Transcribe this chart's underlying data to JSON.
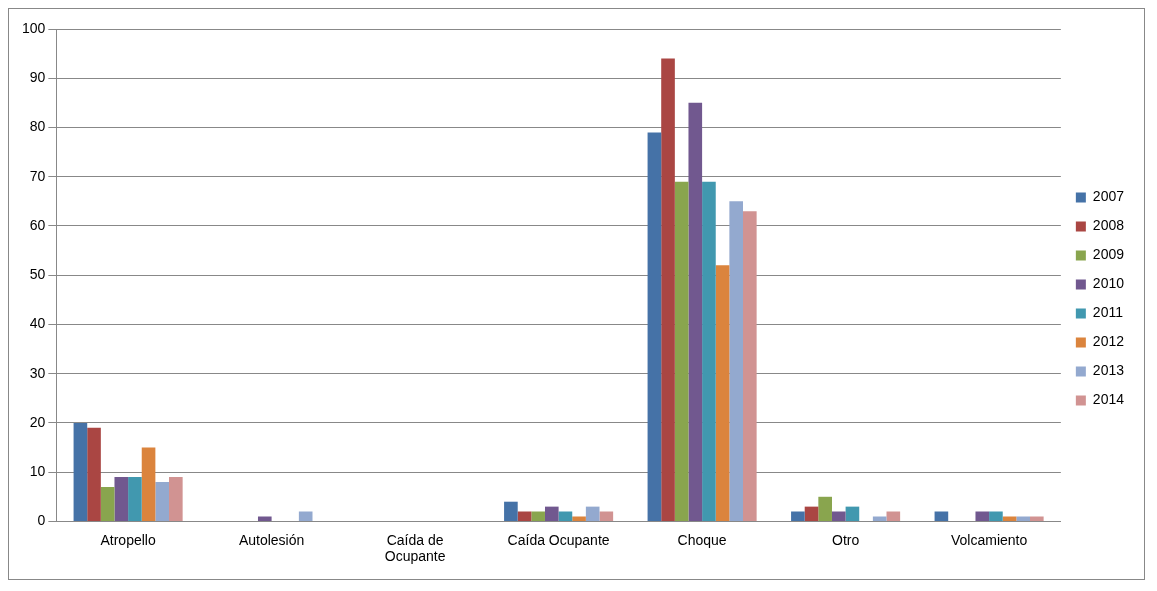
{
  "chart_data": {
    "type": "bar",
    "categories": [
      "Atropello",
      "Autolesión",
      "Caída de Ocupante",
      "Caída Ocupante",
      "Choque",
      "Otro",
      "Volcamiento"
    ],
    "series": [
      {
        "name": "2007",
        "color": "#4572a7",
        "values": [
          20,
          0,
          0,
          4,
          79,
          2,
          2
        ]
      },
      {
        "name": "2008",
        "color": "#aa4643",
        "values": [
          19,
          0,
          0,
          2,
          94,
          3,
          0
        ]
      },
      {
        "name": "2009",
        "color": "#89a54e",
        "values": [
          7,
          0,
          0,
          2,
          69,
          5,
          0
        ]
      },
      {
        "name": "2010",
        "color": "#71588f",
        "values": [
          9,
          1,
          0,
          3,
          85,
          2,
          2
        ]
      },
      {
        "name": "2011",
        "color": "#4198af",
        "values": [
          9,
          0,
          0,
          2,
          69,
          3,
          2
        ]
      },
      {
        "name": "2012",
        "color": "#db843d",
        "values": [
          15,
          0,
          0,
          1,
          52,
          0,
          1
        ]
      },
      {
        "name": "2013",
        "color": "#93a9cf",
        "values": [
          8,
          2,
          0,
          3,
          65,
          1,
          1
        ]
      },
      {
        "name": "2014",
        "color": "#d19392",
        "values": [
          9,
          0,
          0,
          2,
          63,
          2,
          1
        ]
      }
    ],
    "ylim": [
      0,
      100
    ],
    "yticks": [
      0,
      10,
      20,
      30,
      40,
      50,
      60,
      70,
      80,
      90,
      100
    ],
    "grid": "y",
    "legend": "right"
  }
}
